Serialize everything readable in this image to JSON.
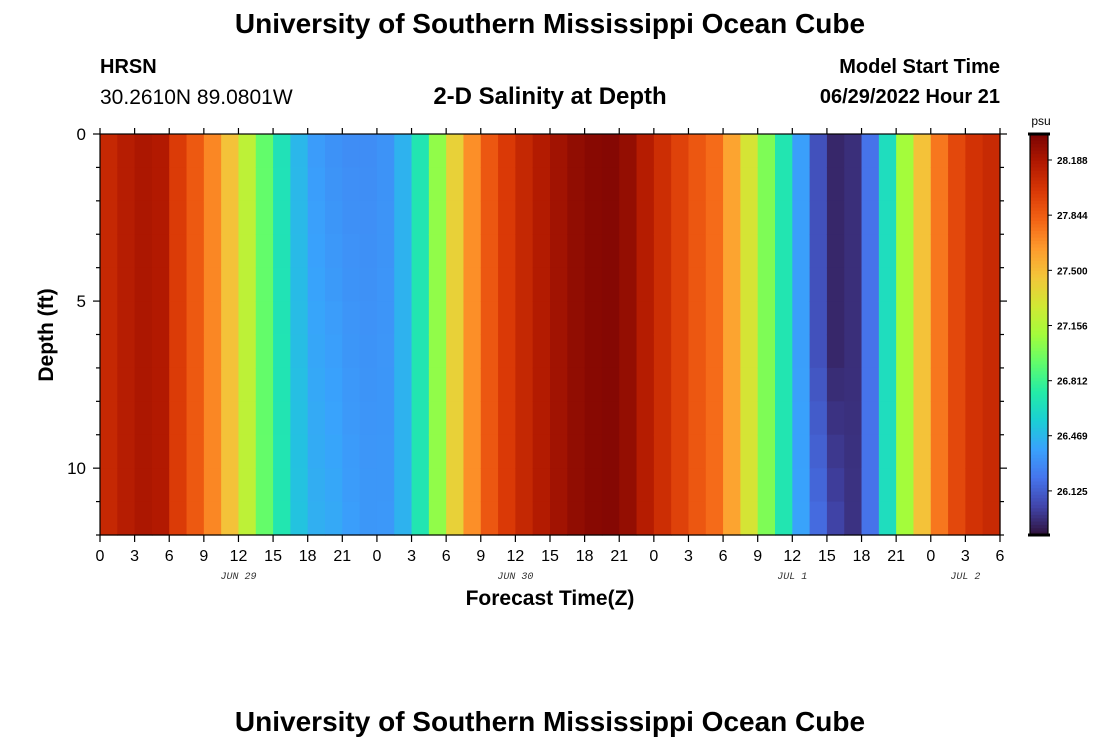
{
  "page": {
    "title": "University of Southern Mississippi Ocean Cube",
    "station": "HRSN",
    "coordinates": "30.2610N  89.0801W",
    "subtitle": "2-D Salinity at Depth",
    "model_start_label": "Model Start Time",
    "model_start_value": "06/29/2022 Hour 21",
    "footer_title": "University of Southern Mississippi Ocean Cube"
  },
  "colors": {
    "background": "#ffffff",
    "axis": "#000000",
    "colormap": [
      "#30123b",
      "#4145ab",
      "#4675ed",
      "#39a2fc",
      "#1bcfd4",
      "#24eca6",
      "#61fc6c",
      "#a4fc3b",
      "#d1e834",
      "#f3c63a",
      "#fe9b2d",
      "#f36315",
      "#d93806",
      "#b11901",
      "#7a0403"
    ]
  },
  "chart_data": {
    "type": "heatmap",
    "title": "2-D Salinity at Depth",
    "xlabel": "Forecast Time(Z)",
    "ylabel": "Depth (ft)",
    "x_unit": "hours since Jun 29 00Z",
    "x_range": [
      0,
      78
    ],
    "x_step": 1.5,
    "x_ticks": [
      0,
      3,
      6,
      9,
      12,
      15,
      18,
      21,
      24,
      27,
      30,
      33,
      36,
      39,
      42,
      45,
      48,
      51,
      54,
      57,
      60,
      63,
      66,
      69,
      72,
      75,
      78
    ],
    "x_tick_labels": [
      "0",
      "3",
      "6",
      "9",
      "12",
      "15",
      "18",
      "21",
      "0",
      "3",
      "6",
      "9",
      "12",
      "15",
      "18",
      "21",
      "0",
      "3",
      "6",
      "9",
      "12",
      "15",
      "18",
      "21",
      "0",
      "3",
      "6"
    ],
    "date_labels": [
      {
        "hour": 12,
        "label": "JUN 29"
      },
      {
        "hour": 36,
        "label": "JUN 30"
      },
      {
        "hour": 60,
        "label": "JUL 1"
      },
      {
        "hour": 75,
        "label": "JUL 2"
      }
    ],
    "y_range": [
      0,
      12
    ],
    "y_ticks": [
      0,
      5,
      10
    ],
    "y_tick_labels": [
      "0",
      "5",
      "10"
    ],
    "y_step": 1,
    "colorbar": {
      "unit": "psu",
      "min": 25.85,
      "max": 28.35,
      "ticks": [
        28.188,
        27.844,
        27.5,
        27.156,
        26.812,
        26.469,
        26.125
      ],
      "tick_labels": [
        "28.188",
        "27.844",
        "27.500",
        "27.156",
        "26.812",
        "26.469",
        "26.125"
      ]
    },
    "surface_profile": [
      [
        0,
        28.05
      ],
      [
        3,
        28.18
      ],
      [
        5,
        28.2
      ],
      [
        7,
        27.95
      ],
      [
        9,
        27.8
      ],
      [
        10.5,
        27.6
      ],
      [
        12,
        27.35
      ],
      [
        13.5,
        27.05
      ],
      [
        15,
        26.8
      ],
      [
        16.5,
        26.55
      ],
      [
        18,
        26.38
      ],
      [
        21,
        26.3
      ],
      [
        24,
        26.3
      ],
      [
        25.5,
        26.35
      ],
      [
        27,
        26.55
      ],
      [
        28.5,
        26.85
      ],
      [
        30,
        27.25
      ],
      [
        31.5,
        27.55
      ],
      [
        33,
        27.8
      ],
      [
        36,
        28.05
      ],
      [
        39,
        28.2
      ],
      [
        42,
        28.3
      ],
      [
        45,
        28.32
      ],
      [
        48,
        28.1
      ],
      [
        51,
        27.9
      ],
      [
        54,
        27.75
      ],
      [
        55.5,
        27.45
      ],
      [
        57,
        27.15
      ],
      [
        58.5,
        26.85
      ],
      [
        60,
        26.55
      ],
      [
        61.5,
        26.2
      ],
      [
        63,
        25.95
      ],
      [
        64.5,
        25.9
      ],
      [
        66,
        26.0
      ],
      [
        67.5,
        26.4
      ],
      [
        69,
        26.9
      ],
      [
        70.5,
        27.3
      ],
      [
        72,
        27.65
      ],
      [
        73.5,
        27.85
      ],
      [
        75,
        28.0
      ],
      [
        78,
        28.1
      ]
    ],
    "depth_anomaly": {
      "low_center_hour": 20,
      "low_half_width_hours": 6,
      "low_increase_at_bottom": 0.1,
      "jul1_trough_center_hour": 63,
      "jul1_trough_half_width_hours": 2.5,
      "jul1_trough_increase_below_ft": 6.5,
      "jul1_trough_increase": 0.15
    }
  }
}
